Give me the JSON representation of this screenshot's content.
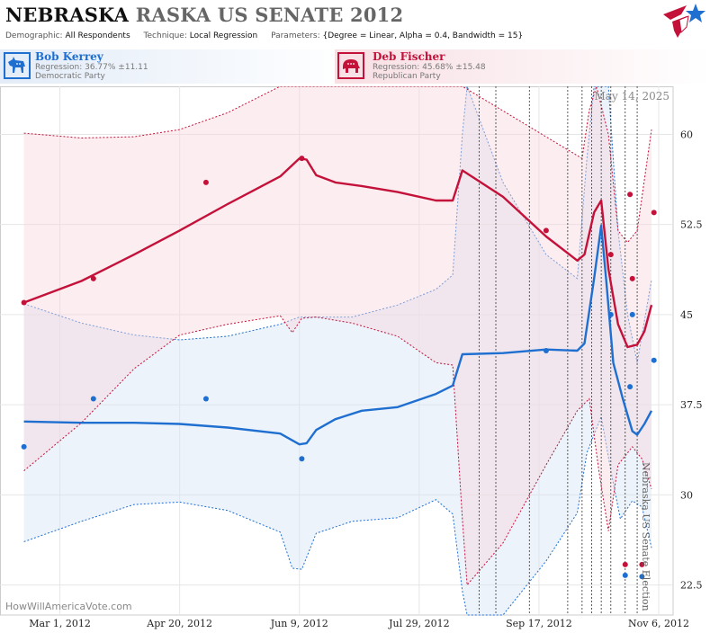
{
  "header": {
    "title_state": "NEBRASKA",
    "title_race": "RASKA US SENATE 2012",
    "demographic_label": "Demographic:",
    "demographic_value": "All Respondents",
    "technique_label": "Technique:",
    "technique_value": "Local Regression",
    "parameters_label": "Parameters:",
    "parameters_value": "{Degree = Linear, Alpha = 0.4, Bandwidth = 15}"
  },
  "candidates": {
    "dem": {
      "name": "Bob Kerrey",
      "regression": "Regression: 36.77% ±11.11",
      "party": "Democratic Party",
      "color": "#1f6fd1"
    },
    "rep": {
      "name": "Deb Fischer",
      "regression": "Regression: 45.68% ±15.48",
      "party": "Republican Party",
      "color": "#c4113a"
    }
  },
  "chart_labels": {
    "date": "May 14, 2025",
    "vertical_note": "Nebraska US Senate Election",
    "watermark": "HowWillAmericaVote.com"
  },
  "icons": {
    "dem": "donkey-icon",
    "rep": "elephant-icon",
    "brand": "flag-star-logo"
  },
  "chart_data": {
    "type": "line",
    "xlabel": "",
    "ylabel": "",
    "x_tick_labels": [
      "Mar 1, 2012",
      "Apr 20, 2012",
      "Jun 9, 2012",
      "Jul 29, 2012",
      "Sep 17, 2012",
      "Nov 6, 2012"
    ],
    "x_tick_dates": [
      "2012-03-01",
      "2012-04-20",
      "2012-06-09",
      "2012-07-29",
      "2012-09-17",
      "2012-11-06"
    ],
    "xlim": [
      "2012-02-05",
      "2012-11-12"
    ],
    "ylim": [
      20,
      64
    ],
    "y_ticks": [
      22.5,
      30,
      37.5,
      45,
      52.5,
      60
    ],
    "grid": true,
    "poll_dates": [
      "2012-08-23",
      "2012-08-30",
      "2012-09-13",
      "2012-09-29",
      "2012-10-05",
      "2012-10-09",
      "2012-10-13",
      "2012-10-17",
      "2012-10-23",
      "2012-10-28"
    ],
    "series": [
      {
        "name": "Bob Kerrey",
        "color": "#1f6fd1",
        "line": [
          [
            "2012-02-15",
            36.1
          ],
          [
            "2012-03-10",
            36
          ],
          [
            "2012-04-01",
            36
          ],
          [
            "2012-04-20",
            35.9
          ],
          [
            "2012-05-10",
            35.6
          ],
          [
            "2012-06-01",
            35.1
          ],
          [
            "2012-06-09",
            34.2
          ],
          [
            "2012-06-12",
            34.3
          ],
          [
            "2012-06-16",
            35.4
          ],
          [
            "2012-06-24",
            36.3
          ],
          [
            "2012-07-05",
            37
          ],
          [
            "2012-07-20",
            37.3
          ],
          [
            "2012-08-05",
            38.4
          ],
          [
            "2012-08-12",
            39.1
          ],
          [
            "2012-08-16",
            41.7
          ],
          [
            "2012-09-02",
            41.8
          ],
          [
            "2012-09-20",
            42.1
          ],
          [
            "2012-10-03",
            42
          ],
          [
            "2012-10-06",
            42.6
          ],
          [
            "2012-10-10",
            48
          ],
          [
            "2012-10-13",
            52.4
          ],
          [
            "2012-10-15",
            48
          ],
          [
            "2012-10-18",
            41
          ],
          [
            "2012-10-22",
            38
          ],
          [
            "2012-10-26",
            35.3
          ],
          [
            "2012-10-28",
            35
          ],
          [
            "2012-10-31",
            35.9
          ],
          [
            "2012-11-03",
            37
          ]
        ],
        "upper": [
          [
            "2012-02-15",
            45.9
          ],
          [
            "2012-03-10",
            44.3
          ],
          [
            "2012-04-01",
            43.3
          ],
          [
            "2012-04-20",
            42.9
          ],
          [
            "2012-05-10",
            43.2
          ],
          [
            "2012-06-01",
            44.2
          ],
          [
            "2012-06-09",
            44.8
          ],
          [
            "2012-06-16",
            44.8
          ],
          [
            "2012-07-01",
            44.8
          ],
          [
            "2012-07-20",
            45.8
          ],
          [
            "2012-08-05",
            47.1
          ],
          [
            "2012-08-12",
            48.3
          ],
          [
            "2012-08-16",
            60
          ],
          [
            "2012-08-18",
            66
          ],
          [
            "2012-09-02",
            56
          ],
          [
            "2012-09-20",
            50
          ],
          [
            "2012-10-03",
            48
          ],
          [
            "2012-10-07",
            58
          ],
          [
            "2012-10-10",
            66
          ],
          [
            "2012-10-16",
            66
          ],
          [
            "2012-10-20",
            52
          ],
          [
            "2012-10-24",
            45
          ],
          [
            "2012-10-28",
            41
          ],
          [
            "2012-11-03",
            47.9
          ]
        ],
        "lower": [
          [
            "2012-02-15",
            26.1
          ],
          [
            "2012-03-10",
            27.8
          ],
          [
            "2012-04-01",
            29.2
          ],
          [
            "2012-04-20",
            29.4
          ],
          [
            "2012-05-10",
            28.7
          ],
          [
            "2012-06-01",
            26.9
          ],
          [
            "2012-06-06",
            23.9
          ],
          [
            "2012-06-10",
            23.8
          ],
          [
            "2012-06-16",
            26.8
          ],
          [
            "2012-07-01",
            27.8
          ],
          [
            "2012-07-20",
            28.1
          ],
          [
            "2012-08-05",
            29.6
          ],
          [
            "2012-08-12",
            28.4
          ],
          [
            "2012-08-16",
            22
          ],
          [
            "2012-08-18",
            16
          ],
          [
            "2012-09-02",
            20
          ],
          [
            "2012-09-20",
            24.5
          ],
          [
            "2012-10-03",
            28.5
          ],
          [
            "2012-10-07",
            33.5
          ],
          [
            "2012-10-13",
            36.5
          ],
          [
            "2012-10-17",
            32
          ],
          [
            "2012-10-21",
            28
          ],
          [
            "2012-10-26",
            29.5
          ],
          [
            "2012-10-30",
            29
          ],
          [
            "2012-11-03",
            25.6
          ]
        ],
        "points": [
          [
            "2012-02-15",
            34
          ],
          [
            "2012-03-15",
            38
          ],
          [
            "2012-05-01",
            38
          ],
          [
            "2012-06-10",
            33
          ],
          [
            "2012-09-20",
            42
          ],
          [
            "2012-10-17",
            45
          ],
          [
            "2012-10-23",
            23.3
          ],
          [
            "2012-10-25",
            39
          ],
          [
            "2012-10-26",
            45
          ],
          [
            "2012-10-30",
            23.2
          ],
          [
            "2012-11-04",
            41.2
          ]
        ]
      },
      {
        "name": "Deb Fischer",
        "color": "#c4113a",
        "line": [
          [
            "2012-02-15",
            46
          ],
          [
            "2012-03-10",
            47.8
          ],
          [
            "2012-04-01",
            50
          ],
          [
            "2012-04-20",
            52
          ],
          [
            "2012-05-10",
            54.2
          ],
          [
            "2012-06-01",
            56.5
          ],
          [
            "2012-06-09",
            58
          ],
          [
            "2012-06-12",
            57.9
          ],
          [
            "2012-06-16",
            56.6
          ],
          [
            "2012-06-24",
            56
          ],
          [
            "2012-07-05",
            55.7
          ],
          [
            "2012-07-20",
            55.2
          ],
          [
            "2012-08-05",
            54.5
          ],
          [
            "2012-08-12",
            54.5
          ],
          [
            "2012-08-16",
            57
          ],
          [
            "2012-09-02",
            54.8
          ],
          [
            "2012-09-20",
            51.5
          ],
          [
            "2012-10-03",
            49.5
          ],
          [
            "2012-10-06",
            50
          ],
          [
            "2012-10-10",
            53.5
          ],
          [
            "2012-10-13",
            54.5
          ],
          [
            "2012-10-16",
            48.8
          ],
          [
            "2012-10-20",
            44.2
          ],
          [
            "2012-10-24",
            42.3
          ],
          [
            "2012-10-28",
            42.5
          ],
          [
            "2012-10-31",
            43.6
          ],
          [
            "2012-11-03",
            45.8
          ]
        ],
        "upper": [
          [
            "2012-02-15",
            60.1
          ],
          [
            "2012-03-10",
            59.7
          ],
          [
            "2012-04-01",
            59.8
          ],
          [
            "2012-04-20",
            60.4
          ],
          [
            "2012-05-10",
            61.8
          ],
          [
            "2012-06-01",
            64.5
          ],
          [
            "2012-06-09",
            66
          ],
          [
            "2012-06-12",
            66
          ],
          [
            "2012-08-16",
            66
          ],
          [
            "2012-10-05",
            58
          ],
          [
            "2012-10-08",
            62
          ],
          [
            "2012-10-11",
            66
          ],
          [
            "2012-10-16",
            60
          ],
          [
            "2012-10-20",
            52
          ],
          [
            "2012-10-24",
            51
          ],
          [
            "2012-10-28",
            52
          ],
          [
            "2012-11-03",
            60.4
          ]
        ],
        "lower": [
          [
            "2012-02-15",
            32
          ],
          [
            "2012-03-10",
            36
          ],
          [
            "2012-04-01",
            40.5
          ],
          [
            "2012-04-20",
            43.3
          ],
          [
            "2012-05-10",
            44.2
          ],
          [
            "2012-06-01",
            44.9
          ],
          [
            "2012-06-06",
            43.5
          ],
          [
            "2012-06-10",
            44.7
          ],
          [
            "2012-06-16",
            44.8
          ],
          [
            "2012-07-01",
            44.3
          ],
          [
            "2012-07-20",
            43.2
          ],
          [
            "2012-08-05",
            41
          ],
          [
            "2012-08-12",
            40.8
          ],
          [
            "2012-08-16",
            28
          ],
          [
            "2012-08-18",
            22.5
          ],
          [
            "2012-09-02",
            26
          ],
          [
            "2012-09-20",
            32.5
          ],
          [
            "2012-10-03",
            37
          ],
          [
            "2012-10-08",
            38
          ],
          [
            "2012-10-12",
            32
          ],
          [
            "2012-10-16",
            27
          ],
          [
            "2012-10-20",
            32.5
          ],
          [
            "2012-10-26",
            34
          ],
          [
            "2012-10-30",
            33
          ],
          [
            "2012-11-03",
            30.5
          ]
        ],
        "points": [
          [
            "2012-02-15",
            46
          ],
          [
            "2012-03-15",
            48
          ],
          [
            "2012-05-01",
            56
          ],
          [
            "2012-06-10",
            58
          ],
          [
            "2012-09-20",
            52
          ],
          [
            "2012-10-17",
            50
          ],
          [
            "2012-10-23",
            24.2
          ],
          [
            "2012-10-25",
            55
          ],
          [
            "2012-10-26",
            48
          ],
          [
            "2012-10-30",
            24.2
          ],
          [
            "2012-11-04",
            53.5
          ]
        ]
      }
    ]
  }
}
